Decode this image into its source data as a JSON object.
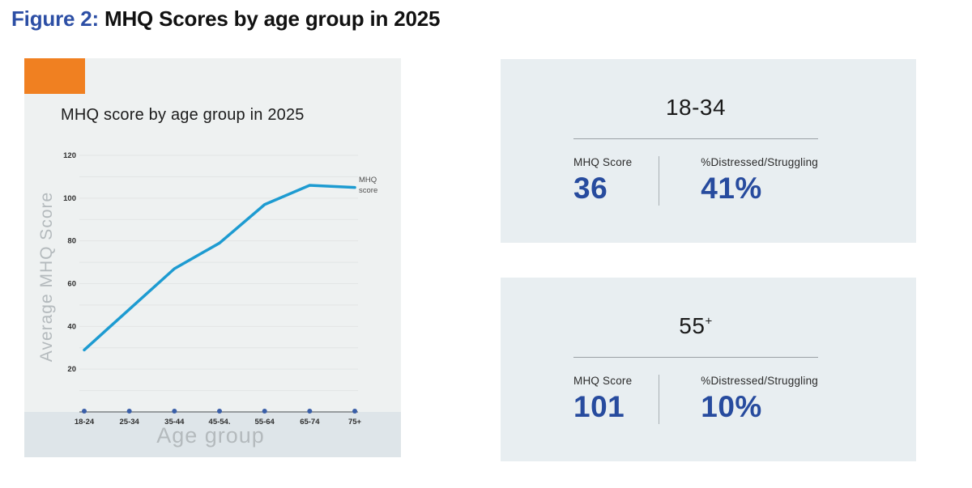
{
  "page": {
    "title_prefix": "Figure 2:",
    "title_rest": " MHQ Scores by age group in 2025"
  },
  "chart_panel": {
    "title": "MHQ score by age group in 2025",
    "legend": {
      "line1": "MHQ",
      "line2": "score"
    }
  },
  "chart_data": {
    "type": "line",
    "title": "MHQ score by age group in 2025",
    "xlabel": "Age group",
    "ylabel": "Average MHQ Score",
    "categories": [
      "18-24",
      "25-34",
      "35-44",
      "45-54.",
      "55-64",
      "65-74",
      "75+"
    ],
    "series": [
      {
        "name": "MHQ score",
        "values": [
          29,
          48,
          67,
          79,
          97,
          106,
          105
        ]
      }
    ],
    "ylim": [
      0,
      120
    ],
    "yticks": [
      20,
      40,
      60,
      80,
      100,
      120
    ],
    "grid_step": 10,
    "grid": "horizontal",
    "legend_position": "right-of-line-end",
    "line_color": "#1d9bd1",
    "marker_color": "#3a5fa8"
  },
  "cards": [
    {
      "title": "18-34",
      "title_sup": "",
      "score_label": "MHQ Score",
      "score": "36",
      "pct_label": "%Distressed/Struggling",
      "pct": "41%"
    },
    {
      "title": "55",
      "title_sup": "+",
      "score_label": "MHQ Score",
      "score": "101",
      "pct_label": "%Distressed/Struggling",
      "pct": "10%"
    }
  ],
  "colors": {
    "title_accent": "#2d4fa5",
    "panel_bg": "#eef1f1",
    "strip_bg": "#dee5e9",
    "card_bg": "#e8eef1",
    "orange_block": "#f08021",
    "value_navy": "#274b9e",
    "line_blue": "#1d9bd1",
    "dot_navy": "#3a5fa8",
    "muted_axis_text": "#b4babd"
  }
}
